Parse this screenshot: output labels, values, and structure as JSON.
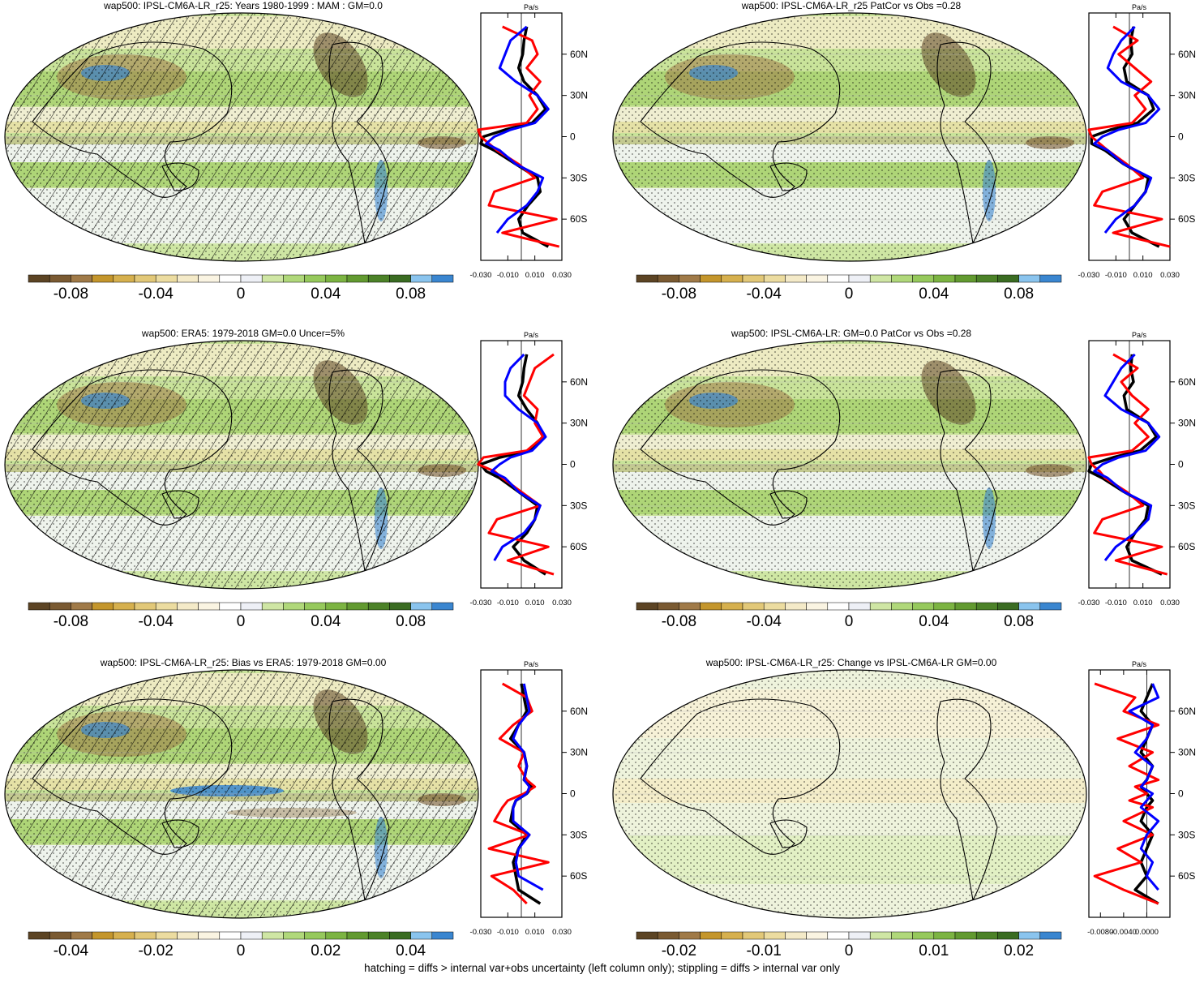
{
  "footer": "hatching = diffs > internal var+obs uncertainty (left column only); stippling = diffs > internal var only",
  "palette": [
    "#5c4424",
    "#7a5a32",
    "#a07a48",
    "#c4962c",
    "#d6b04e",
    "#e2c878",
    "#ecdca0",
    "#f4eac8",
    "#faf4e2",
    "#ffffff",
    "#eef0f6",
    "#cfe6a4",
    "#b0d87a",
    "#96c95c",
    "#7cb442",
    "#629a30",
    "#4c8228",
    "#3a6c22",
    "#8ac4ee",
    "#3a86d0"
  ],
  "chart_data": [
    {
      "type": "heatmap",
      "title": "wap500: IPSL-CM6A-LR_r25: Years 1980-1999 : MAM : GM=0.0",
      "colorbar_ticks": [
        "-0.08",
        "-0.04",
        "0",
        "0.04",
        "0.08"
      ],
      "zonal_mean": {
        "unit": "Pa/s",
        "lat_ticks": [
          "60N",
          "30N",
          "0",
          "30S",
          "60S"
        ],
        "x_ticks": [
          "-0.030",
          "-0.010",
          "0.010",
          "0.030"
        ],
        "xlim": [
          -0.03,
          0.03
        ],
        "series": [
          {
            "color": "#000000",
            "lat": [
              80,
              70,
              60,
              50,
              40,
              30,
              20,
              10,
              5,
              0,
              -5,
              -10,
              -20,
              -30,
              -40,
              -50,
              -60,
              -70,
              -80
            ],
            "values": [
              0.004,
              0.002,
              0.001,
              -0.002,
              0.002,
              0.012,
              0.018,
              0.008,
              -0.012,
              -0.028,
              -0.03,
              -0.02,
              -0.004,
              0.012,
              0.014,
              0.005,
              -0.002,
              0.001,
              0.02
            ]
          },
          {
            "color": "#ff0000",
            "lat": [
              80,
              70,
              60,
              50,
              40,
              30,
              20,
              10,
              5,
              0,
              -5,
              -10,
              -20,
              -30,
              -40,
              -50,
              -60,
              -70,
              -80
            ],
            "values": [
              -0.014,
              0.008,
              0.012,
              0.004,
              0.014,
              0.006,
              0.012,
              0.004,
              -0.032,
              -0.03,
              -0.024,
              -0.018,
              -0.002,
              0.01,
              -0.02,
              -0.024,
              0.026,
              -0.014,
              0.028
            ]
          },
          {
            "color": "#0000ff",
            "lat": [
              80,
              70,
              60,
              50,
              40,
              30,
              20,
              10,
              5,
              0,
              -5,
              -10,
              -20,
              -30,
              -40,
              -50,
              -60,
              -70,
              -80
            ],
            "values": [
              0.004,
              -0.008,
              -0.012,
              -0.016,
              -0.004,
              0.012,
              0.02,
              0.01,
              -0.008,
              -0.02,
              -0.026,
              -0.016,
              -0.004,
              0.016,
              0.012,
              0.004,
              -0.01,
              -0.018,
              null
            ]
          }
        ]
      }
    },
    {
      "type": "heatmap",
      "title": "wap500: IPSL-CM6A-LR_r25 PatCor vs Obs =0.28",
      "colorbar_ticks": [
        "-0.08",
        "-0.04",
        "0",
        "0.04",
        "0.08"
      ],
      "zonal_mean": {
        "unit": "Pa/s",
        "lat_ticks": [
          "60N",
          "30N",
          "0",
          "30S",
          "60S"
        ],
        "x_ticks": [
          "-0.030",
          "-0.010",
          "0.010",
          "0.030"
        ],
        "xlim": [
          -0.03,
          0.03
        ],
        "series": [
          {
            "color": "#000000",
            "lat": [
              80,
              70,
              60,
              50,
              40,
              30,
              20,
              10,
              5,
              0,
              -5,
              -10,
              -20,
              -30,
              -40,
              -50,
              -60,
              -70,
              -80
            ],
            "values": [
              0.003,
              0.001,
              0.002,
              -0.004,
              -0.002,
              0.014,
              0.018,
              0.006,
              -0.014,
              -0.028,
              -0.028,
              -0.018,
              -0.004,
              0.014,
              0.012,
              0.004,
              -0.004,
              0.002,
              0.022
            ]
          },
          {
            "color": "#ff0000",
            "lat": [
              80,
              70,
              60,
              50,
              40,
              30,
              20,
              10,
              5,
              0,
              -5,
              -10,
              -20,
              -30,
              -40,
              -50,
              -60,
              -70,
              -80
            ],
            "values": [
              -0.012,
              0.006,
              -0.008,
              0.004,
              0.016,
              0.004,
              0.012,
              0.002,
              -0.03,
              -0.028,
              -0.022,
              -0.016,
              -0.002,
              0.01,
              -0.02,
              -0.026,
              0.024,
              -0.012,
              0.03
            ]
          },
          {
            "color": "#0000ff",
            "lat": [
              80,
              70,
              60,
              50,
              40,
              30,
              20,
              10,
              5,
              0,
              -5,
              -10,
              -20,
              -30,
              -40,
              -50,
              -60,
              -70,
              -80
            ],
            "values": [
              0.004,
              -0.006,
              -0.012,
              -0.016,
              -0.006,
              0.014,
              0.022,
              0.012,
              -0.008,
              -0.02,
              -0.026,
              -0.016,
              -0.004,
              0.016,
              0.012,
              0.004,
              -0.01,
              -0.018,
              null
            ]
          }
        ]
      }
    },
    {
      "type": "heatmap",
      "title": "wap500: ERA5: 1979-2018 GM=0.0 Uncer=5%",
      "colorbar_ticks": [
        "-0.08",
        "-0.04",
        "0",
        "0.04",
        "0.08"
      ],
      "zonal_mean": {
        "unit": "Pa/s",
        "lat_ticks": [
          "60N",
          "30N",
          "0",
          "30S",
          "60S"
        ],
        "x_ticks": [
          "-0.030",
          "-0.010",
          "0.010",
          "0.030"
        ],
        "xlim": [
          -0.03,
          0.03
        ],
        "series": [
          {
            "color": "#000000",
            "lat": [
              80,
              70,
              60,
              50,
              40,
              30,
              20,
              10,
              5,
              0,
              -5,
              -10,
              -20,
              -30,
              -40,
              -50,
              -60,
              -70,
              -80
            ],
            "values": [
              0.004,
              0.002,
              0.001,
              -0.002,
              0.004,
              0.012,
              0.016,
              0.006,
              -0.016,
              -0.03,
              -0.026,
              -0.016,
              -0.002,
              0.012,
              0.01,
              0.004,
              -0.006,
              0.002,
              0.018
            ]
          },
          {
            "color": "#ff0000",
            "lat": [
              80,
              70,
              60,
              50,
              40,
              30,
              20,
              10,
              5,
              0,
              -5,
              -10,
              -20,
              -30,
              -40,
              -50,
              -60,
              -70,
              -80
            ],
            "values": [
              0.024,
              0.01,
              0.006,
              0.002,
              0.012,
              0.01,
              0.016,
              0.004,
              -0.028,
              -0.032,
              -0.02,
              -0.014,
              0.0,
              0.014,
              -0.018,
              -0.024,
              0.02,
              -0.01,
              0.024
            ]
          },
          {
            "color": "#0000ff",
            "lat": [
              80,
              70,
              60,
              50,
              40,
              30,
              20,
              10,
              5,
              0,
              -5,
              -10,
              -20,
              -30,
              -40,
              -50,
              -60,
              -70,
              -80
            ],
            "values": [
              0.002,
              -0.008,
              -0.012,
              -0.012,
              -0.002,
              0.012,
              0.018,
              0.008,
              -0.008,
              -0.016,
              -0.022,
              -0.012,
              -0.002,
              0.014,
              0.01,
              0.002,
              -0.014,
              -0.02,
              null
            ]
          }
        ]
      }
    },
    {
      "type": "heatmap",
      "title": "wap500: IPSL-CM6A-LR: GM=0.0 PatCor vs Obs =0.28",
      "colorbar_ticks": [
        "-0.08",
        "-0.04",
        "0",
        "0.04",
        "0.08"
      ],
      "zonal_mean": {
        "unit": "Pa/s",
        "lat_ticks": [
          "60N",
          "30N",
          "0",
          "30S",
          "60S"
        ],
        "x_ticks": [
          "-0.030",
          "-0.010",
          "0.010",
          "0.030"
        ],
        "xlim": [
          -0.03,
          0.03
        ],
        "series": [
          {
            "color": "#000000",
            "lat": [
              80,
              70,
              60,
              50,
              40,
              30,
              20,
              10,
              5,
              0,
              -5,
              -10,
              -20,
              -30,
              -40,
              -50,
              -60,
              -70,
              -80
            ],
            "values": [
              0.002,
              0.001,
              0.003,
              -0.004,
              -0.002,
              0.014,
              0.02,
              0.008,
              -0.012,
              -0.028,
              -0.03,
              -0.02,
              -0.004,
              0.014,
              0.012,
              0.004,
              -0.002,
              0.002,
              0.024
            ]
          },
          {
            "color": "#ff0000",
            "lat": [
              80,
              70,
              60,
              50,
              40,
              30,
              20,
              10,
              5,
              0,
              -5,
              -10,
              -20,
              -30,
              -40,
              -50,
              -60,
              -70,
              -80
            ],
            "values": [
              -0.012,
              0.006,
              -0.006,
              0.002,
              0.014,
              0.004,
              0.014,
              0.002,
              -0.03,
              -0.028,
              -0.022,
              -0.018,
              -0.002,
              0.01,
              -0.02,
              -0.026,
              0.024,
              -0.01,
              0.028
            ]
          },
          {
            "color": "#0000ff",
            "lat": [
              80,
              70,
              60,
              50,
              40,
              30,
              20,
              10,
              5,
              0,
              -5,
              -10,
              -20,
              -30,
              -40,
              -50,
              -60,
              -70,
              -80
            ],
            "values": [
              0.004,
              -0.006,
              -0.012,
              -0.018,
              -0.006,
              0.014,
              0.022,
              0.012,
              -0.008,
              -0.02,
              -0.026,
              -0.016,
              -0.004,
              0.016,
              0.014,
              0.004,
              -0.01,
              -0.018,
              null
            ]
          }
        ]
      }
    },
    {
      "type": "heatmap",
      "title": "wap500: IPSL-CM6A-LR_r25: Bias vs ERA5: 1979-2018 GM=0.00",
      "colorbar_ticks": [
        "-0.04",
        "-0.02",
        "0",
        "0.02",
        "0.04"
      ],
      "zonal_mean": {
        "unit": "Pa/s",
        "lat_ticks": [
          "60N",
          "30N",
          "0",
          "30S",
          "60S"
        ],
        "x_ticks": [
          "-0.030",
          "-0.010",
          "0.010",
          "0.030"
        ],
        "xlim": [
          -0.03,
          0.03
        ],
        "series": [
          {
            "color": "#000000",
            "lat": [
              80,
              70,
              60,
              50,
              40,
              30,
              20,
              10,
              5,
              0,
              -5,
              -10,
              -20,
              -30,
              -40,
              -50,
              -60,
              -70,
              -80
            ],
            "values": [
              0.0,
              0.002,
              0.004,
              -0.002,
              -0.008,
              0.002,
              0.004,
              0.002,
              0.008,
              0.004,
              -0.004,
              -0.006,
              -0.008,
              0.004,
              -0.002,
              -0.006,
              -0.004,
              -0.002,
              0.014
            ]
          },
          {
            "color": "#ff0000",
            "lat": [
              80,
              70,
              60,
              50,
              40,
              30,
              20,
              10,
              5,
              0,
              -5,
              -10,
              -20,
              -30,
              -40,
              -50,
              -60,
              -70,
              -80
            ],
            "values": [
              -0.014,
              0.004,
              0.008,
              -0.006,
              -0.016,
              0.002,
              -0.002,
              0.004,
              0.01,
              0.002,
              -0.01,
              -0.014,
              -0.02,
              0.006,
              -0.024,
              0.02,
              -0.022,
              -0.006,
              0.004
            ]
          },
          {
            "color": "#0000ff",
            "lat": [
              80,
              70,
              60,
              50,
              40,
              30,
              20,
              10,
              5,
              0,
              -5,
              -10,
              -20,
              -30,
              -40,
              -50,
              -60,
              -70,
              -80
            ],
            "values": [
              0.002,
              0.004,
              0.006,
              -0.002,
              -0.006,
              0.002,
              0.004,
              0.002,
              0.006,
              0.004,
              -0.004,
              -0.006,
              -0.006,
              0.006,
              -0.002,
              -0.004,
              -0.002,
              0.016,
              null
            ]
          }
        ]
      }
    },
    {
      "type": "heatmap",
      "title": "wap500: IPSL-CM6A-LR_r25: Change vs IPSL-CM6A-LR GM=0.00",
      "colorbar_ticks": [
        "-0.02",
        "-0.01",
        "0",
        "0.01",
        "0.02"
      ],
      "zonal_mean": {
        "unit": "Pa/s",
        "lat_ticks": [
          "60N",
          "30N",
          "0",
          "30S",
          "60S"
        ],
        "x_ticks": [
          "-0.0080",
          "-0.0040",
          "0.0000"
        ],
        "xlim": [
          -0.01,
          0.004
        ],
        "series": [
          {
            "color": "#000000",
            "lat": [
              80,
              70,
              60,
              50,
              40,
              30,
              20,
              10,
              5,
              0,
              -5,
              -10,
              -20,
              -30,
              -40,
              -50,
              -60,
              -70,
              -80
            ],
            "values": [
              0.001,
              0.0,
              -0.001,
              0.001,
              0.0,
              -0.001,
              0.001,
              0.0,
              -0.001,
              0.0,
              0.001,
              0.0,
              -0.001,
              0.001,
              0.0,
              -0.001,
              0.0,
              -0.002,
              0.002
            ]
          },
          {
            "color": "#ff0000",
            "lat": [
              80,
              70,
              60,
              50,
              40,
              30,
              20,
              10,
              5,
              0,
              -5,
              -10,
              -20,
              -30,
              -40,
              -50,
              -60,
              -70,
              -80
            ],
            "values": [
              -0.009,
              -0.002,
              -0.004,
              0.002,
              -0.005,
              0.001,
              -0.003,
              0.002,
              -0.002,
              0.0,
              -0.003,
              0.001,
              -0.004,
              0.001,
              -0.005,
              -0.001,
              -0.009,
              -0.004,
              0.002
            ]
          },
          {
            "color": "#0000ff",
            "lat": [
              80,
              70,
              60,
              50,
              40,
              30,
              20,
              10,
              5,
              0,
              -5,
              -10,
              -20,
              -30,
              -40,
              -50,
              -60,
              -70,
              -80
            ],
            "values": [
              0.001,
              0.002,
              -0.003,
              0.001,
              0.0,
              -0.002,
              0.001,
              0.0,
              -0.001,
              0.001,
              0.0,
              -0.001,
              0.002,
              0.0,
              -0.001,
              0.001,
              0.0,
              0.002,
              null
            ]
          }
        ]
      }
    }
  ]
}
